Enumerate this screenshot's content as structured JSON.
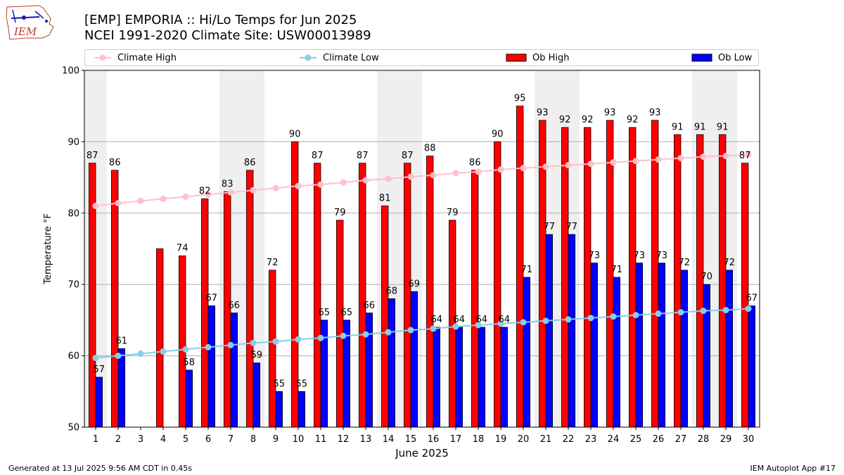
{
  "header": {
    "title_line1": "[EMP] EMPORIA :: Hi/Lo Temps for Jun 2025",
    "title_line2": "NCEI 1991-2020 Climate Site: USW00013989",
    "logo_text": "IEM"
  },
  "legend": {
    "items": [
      {
        "label": "Climate High",
        "color": "#ffc0cb",
        "kind": "line"
      },
      {
        "label": "Climate Low",
        "color": "#87ceeb",
        "kind": "line"
      },
      {
        "label": "Ob High",
        "color": "#ff0000",
        "kind": "bar"
      },
      {
        "label": "Ob Low",
        "color": "#0000ff",
        "kind": "bar"
      }
    ],
    "placement": "top"
  },
  "footer": {
    "left": "Generated at 13 Jul 2025 9:56 AM CDT in 0.45s",
    "right": "IEM Autoplot App #17"
  },
  "chart_data": {
    "type": "bar",
    "title": "[EMP] EMPORIA :: Hi/Lo Temps for Jun 2025",
    "subtitle": "NCEI 1991-2020 Climate Site: USW00013989",
    "xlabel": "June 2025",
    "ylabel": "Temperature °F",
    "ylim": [
      50,
      100
    ],
    "yticks": [
      50,
      60,
      70,
      80,
      90,
      100
    ],
    "grid": true,
    "categories": [
      1,
      2,
      3,
      4,
      5,
      6,
      7,
      8,
      9,
      10,
      11,
      12,
      13,
      14,
      15,
      16,
      17,
      18,
      19,
      20,
      21,
      22,
      23,
      24,
      25,
      26,
      27,
      28,
      29,
      30
    ],
    "weekend_shading_days": [
      [
        1,
        1
      ],
      [
        7,
        8
      ],
      [
        14,
        15
      ],
      [
        21,
        22
      ],
      [
        28,
        29
      ]
    ],
    "series": [
      {
        "name": "Ob High",
        "color": "#ff0000",
        "values": [
          87,
          86,
          null,
          75,
          74,
          82,
          83,
          86,
          72,
          90,
          87,
          79,
          87,
          81,
          87,
          88,
          79,
          86,
          90,
          95,
          93,
          92,
          92,
          93,
          92,
          93,
          91,
          91,
          91,
          87
        ],
        "labels": [
          "87",
          "86",
          "",
          "",
          "74",
          "82",
          "83",
          "86",
          "72",
          "90",
          "87",
          "79",
          "87",
          "81",
          "87",
          "88",
          "79",
          "86",
          "90",
          "95",
          "93",
          "92",
          "92",
          "93",
          "92",
          "93",
          "91",
          "91",
          "91",
          "87"
        ]
      },
      {
        "name": "Ob Low",
        "color": "#0000ff",
        "values": [
          57,
          61,
          null,
          null,
          58,
          67,
          66,
          59,
          55,
          55,
          65,
          65,
          66,
          68,
          69,
          64,
          64,
          64,
          64,
          71,
          77,
          77,
          73,
          71,
          73,
          73,
          72,
          70,
          72,
          67
        ],
        "labels": [
          "57",
          "61",
          "",
          "",
          "58",
          "67",
          "66",
          "59",
          "55",
          "55",
          "65",
          "65",
          "66",
          "68",
          "69",
          "64",
          "64",
          "64",
          "64",
          "71",
          "77",
          "77",
          "73",
          "71",
          "73",
          "73",
          "72",
          "70",
          "72",
          "67"
        ]
      },
      {
        "name": "Climate High",
        "color": "#ffc0cb",
        "values": [
          81.0,
          81.4,
          81.7,
          82.0,
          82.3,
          82.6,
          82.9,
          83.2,
          83.5,
          83.8,
          84.0,
          84.3,
          84.6,
          84.8,
          85.1,
          85.3,
          85.6,
          85.8,
          86.1,
          86.3,
          86.5,
          86.7,
          86.9,
          87.1,
          87.3,
          87.5,
          87.7,
          87.9,
          88.0,
          88.2
        ]
      },
      {
        "name": "Climate Low",
        "color": "#87ceeb",
        "values": [
          59.7,
          60.0,
          60.3,
          60.6,
          60.9,
          61.2,
          61.5,
          61.8,
          62.0,
          62.3,
          62.5,
          62.8,
          63.0,
          63.3,
          63.6,
          63.8,
          64.1,
          64.3,
          64.5,
          64.7,
          64.9,
          65.1,
          65.3,
          65.5,
          65.7,
          65.9,
          66.1,
          66.3,
          66.4,
          66.6
        ]
      }
    ]
  }
}
